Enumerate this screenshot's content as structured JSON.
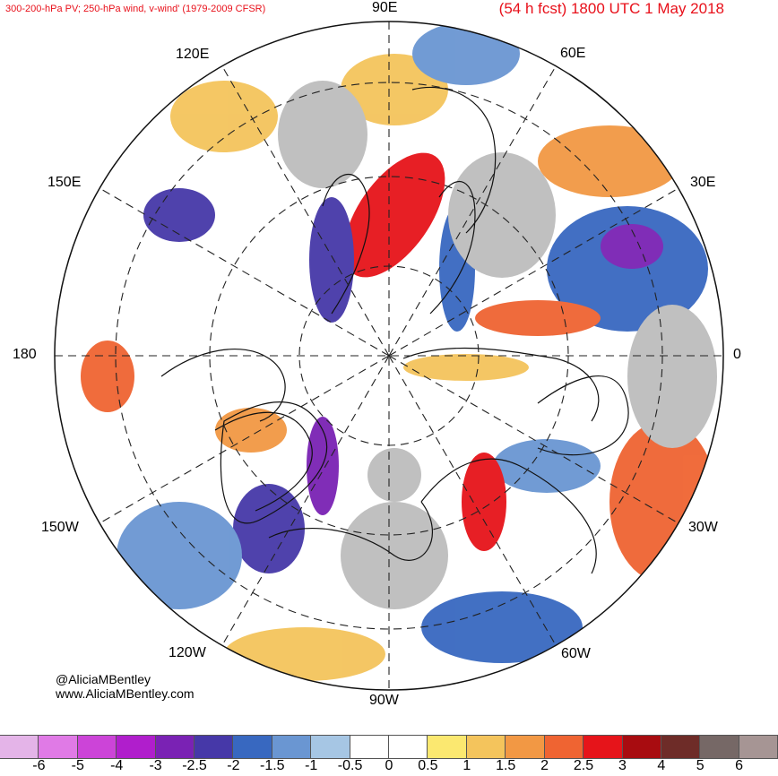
{
  "header": {
    "left_title": "300-200-hPa PV; 250-hPa wind, v-wind' (1979-2009 CFSR)",
    "right_title": "(54 h fcst) 1800 UTC 1 May 2018"
  },
  "longitude_labels": {
    "lon_90e": "90E",
    "lon_60e": "60E",
    "lon_120e": "120E",
    "lon_30e": "30E",
    "lon_150e": "150E",
    "lon_180": "180",
    "lon_0": "0",
    "lon_150w": "150W",
    "lon_30w": "30W",
    "lon_120w": "120W",
    "lon_60w": "60W",
    "lon_90w": "90W"
  },
  "credits": {
    "twitter": "@AliciaMBentley",
    "website": "www.AliciaMBentley.com"
  },
  "colorbar": {
    "colors": [
      "#e4b4e8",
      "#e07ae6",
      "#cc44d8",
      "#b01ecc",
      "#7a22b4",
      "#4638a8",
      "#3868c0",
      "#6a96d2",
      "#a6c6e4",
      "#ffffff",
      "#ffffff",
      "#fbe870",
      "#f4c45c",
      "#f29844",
      "#ef6432",
      "#e6141a",
      "#a80c10",
      "#6e2c28",
      "#766866",
      "#a69594"
    ],
    "ticks": [
      "-6",
      "-5",
      "-4",
      "-3",
      "-2.5",
      "-2",
      "-1.5",
      "-1",
      "-0.5",
      "0",
      "0.5",
      "1",
      "1.5",
      "2",
      "2.5",
      "3",
      "4",
      "5",
      "6"
    ]
  },
  "map_colors": {
    "land": "#bdbdbd",
    "positive": "#f29844",
    "negative": "#6a96d2"
  }
}
